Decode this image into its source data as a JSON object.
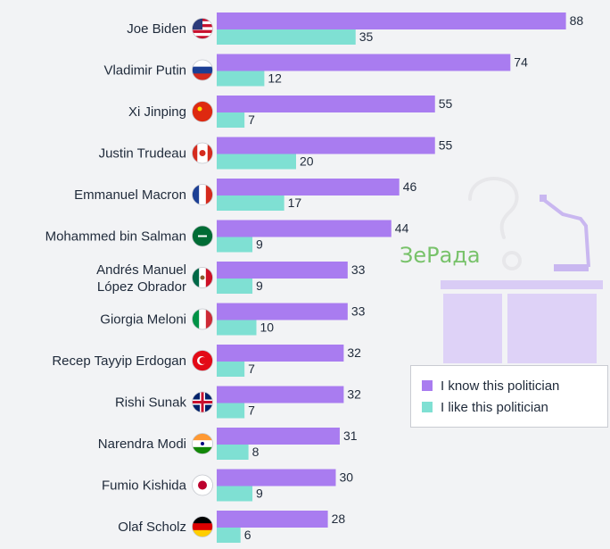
{
  "chart_data": {
    "type": "bar",
    "orientation": "horizontal",
    "categories": [
      {
        "label": "Joe Biden",
        "flag": "united-states-flag-icon"
      },
      {
        "label": "Vladimir Putin",
        "flag": "russia-flag-icon"
      },
      {
        "label": "Xi Jinping",
        "flag": "china-flag-icon"
      },
      {
        "label": "Justin Trudeau",
        "flag": "canada-flag-icon"
      },
      {
        "label": "Emmanuel Macron",
        "flag": "france-flag-icon"
      },
      {
        "label": "Mohammed bin Salman",
        "flag": "saudi-arabia-flag-icon"
      },
      {
        "label": "Andrés Manuel\nLópez Obrador",
        "flag": "mexico-flag-icon"
      },
      {
        "label": "Giorgia Meloni",
        "flag": "italy-flag-icon"
      },
      {
        "label": "Recep Tayyip Erdogan",
        "flag": "turkey-flag-icon"
      },
      {
        "label": "Rishi Sunak",
        "flag": "united-kingdom-flag-icon"
      },
      {
        "label": "Narendra Modi",
        "flag": "india-flag-icon"
      },
      {
        "label": "Fumio Kishida",
        "flag": "japan-flag-icon"
      },
      {
        "label": "Olaf Scholz",
        "flag": "germany-flag-icon"
      }
    ],
    "series": [
      {
        "name": "I know this politician",
        "color": "#a97cf0",
        "values": [
          88,
          74,
          55,
          55,
          46,
          44,
          33,
          33,
          32,
          32,
          31,
          30,
          28
        ]
      },
      {
        "name": "I like this politician",
        "color": "#7fe0d3",
        "values": [
          35,
          12,
          7,
          20,
          17,
          9,
          9,
          10,
          7,
          7,
          8,
          9,
          6
        ]
      }
    ],
    "xlim": [
      0,
      100
    ],
    "legend_position": "bottom-right",
    "grid": false
  },
  "watermark": {
    "text": "ЗеРада"
  },
  "decoration": {
    "question_mark_icon": "question-mark-icon",
    "podium_icon": "podium-icon"
  }
}
